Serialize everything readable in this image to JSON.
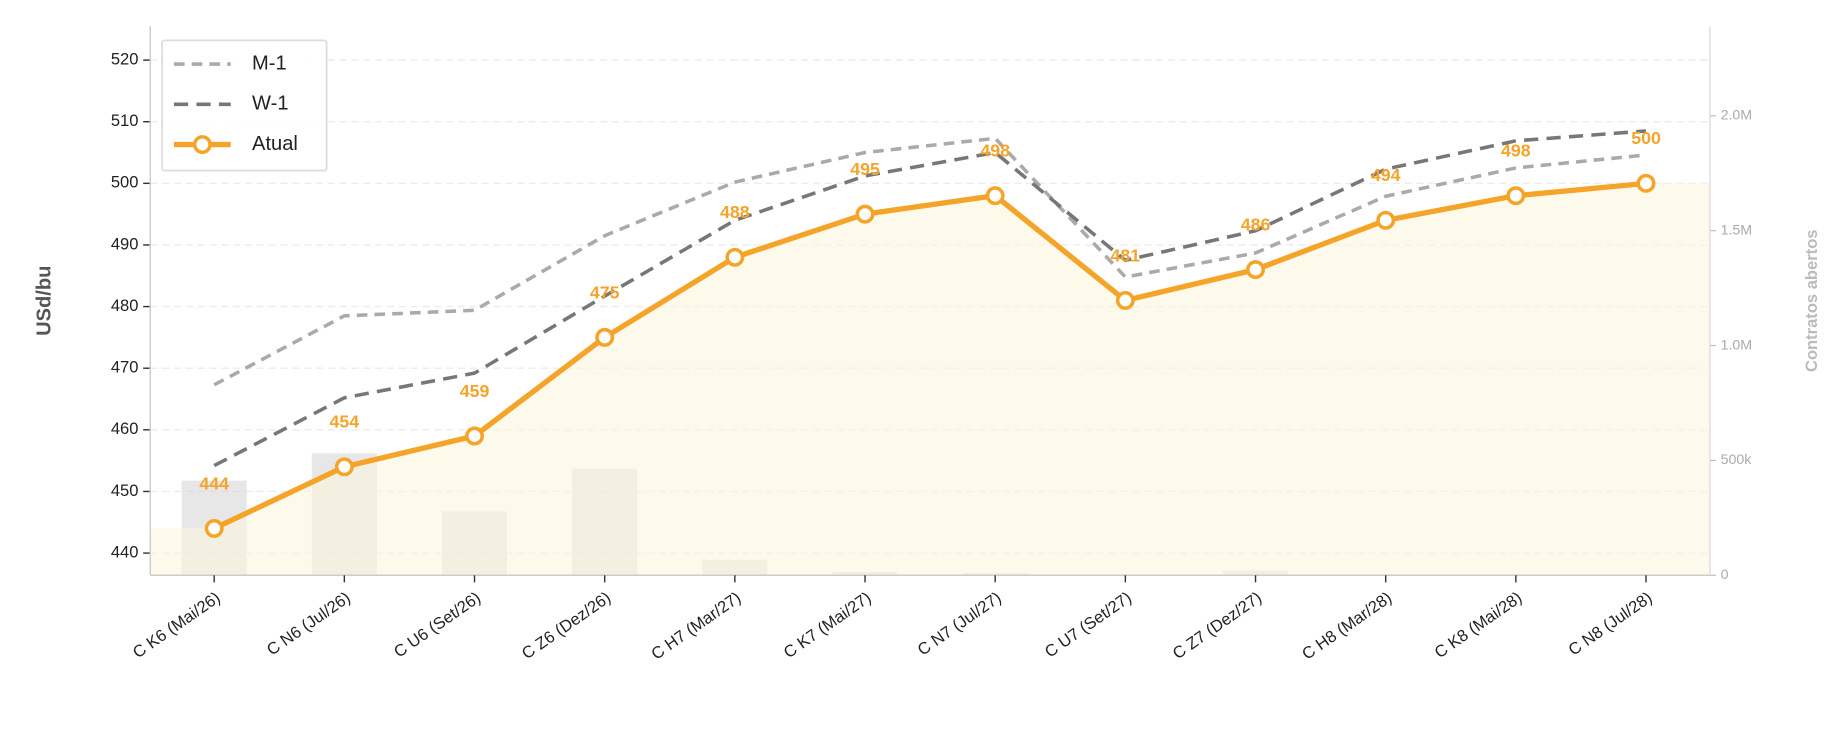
{
  "chart_data": {
    "type": "line",
    "y_label": "USd/bu",
    "y2_label": "Contratos abertos",
    "categories": [
      "C K6 (Mai/26)",
      "C N6 (Jul/26)",
      "C U6 (Set/26)",
      "C Z6 (Dez/26)",
      "C H7 (Mar/27)",
      "C K7 (Mai/27)",
      "C N7 (Jul/27)",
      "C U7 (Set/27)",
      "C Z7 (Dez/27)",
      "C H8 (Mar/28)",
      "C K8 (Mai/28)",
      "C N8 (Jul/28)"
    ],
    "series": [
      {
        "name": "M-1",
        "color": "#aaaaaa",
        "dash": "9 6",
        "values": [
          467.3,
          478.5,
          479.4,
          491.5,
          500.2,
          505,
          507.3,
          484.8,
          488.7,
          497.9,
          502.5,
          504.6
        ]
      },
      {
        "name": "W-1",
        "color": "#777777",
        "dash": "12 7",
        "values": [
          454.2,
          465.2,
          469.2,
          481.7,
          494,
          501.2,
          505,
          487.5,
          492.3,
          502.3,
          506.9,
          508.5
        ]
      },
      {
        "name": "Atual",
        "color": "#f5a42a",
        "markers": true,
        "data_labels": true,
        "fill": "#fdf7de",
        "values": [
          444,
          454,
          459,
          475,
          488,
          495,
          498,
          481,
          486,
          494,
          498,
          500
        ]
      }
    ],
    "open_interest": {
      "axis": "y2",
      "color": "#c9c9c9",
      "values": [
        412000,
        531000,
        278000,
        464000,
        67000,
        15000,
        10000,
        2000,
        21000,
        2000,
        1000,
        1000
      ]
    },
    "ylim": [
      436.4,
      525.5
    ],
    "yticks": [
      440,
      450,
      460,
      470,
      480,
      490,
      500,
      510,
      520
    ],
    "y2lim": [
      0,
      2390000
    ],
    "y2ticks": [
      0,
      {
        "value": 500000,
        "label": "500k"
      },
      {
        "value": 1000000,
        "label": "1.0M"
      },
      {
        "value": 1500000,
        "label": "1.5M"
      },
      {
        "value": 2000000,
        "label": "2.0M"
      }
    ],
    "grid": true,
    "legend": "upper left"
  }
}
